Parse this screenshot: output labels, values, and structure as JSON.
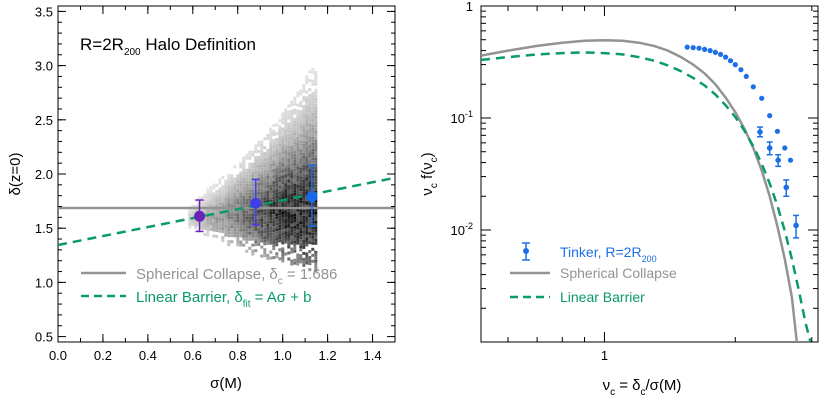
{
  "chart_data": [
    {
      "type": "scatter",
      "annotation": {
        "main": "R=2R",
        "sub": "200",
        "tail": " Halo Definition"
      },
      "xlabel": "σ(M)",
      "ylabel": "δ(z=0)",
      "xlim": [
        0.0,
        1.5
      ],
      "ylim": [
        0.45,
        3.55
      ],
      "xticks": [
        0.0,
        0.2,
        0.4,
        0.6,
        0.8,
        1.0,
        1.2,
        1.4
      ],
      "xtick_labels": [
        "0.0",
        "0.2",
        "0.4",
        "0.6",
        "0.8",
        "1.0",
        "1.2",
        "1.4"
      ],
      "yticks": [
        0.5,
        1.0,
        1.5,
        2.0,
        2.5,
        3.0,
        3.5
      ],
      "ytick_labels": [
        "0.5",
        "1.0",
        "1.5",
        "2.0",
        "2.5",
        "3.0",
        "3.5"
      ],
      "density_hist": {
        "description": "2D histogram of halo barrier heights",
        "x_range": [
          0.58,
          1.15
        ],
        "upper_envelope": [
          [
            0.58,
            1.72
          ],
          [
            0.65,
            1.85
          ],
          [
            0.75,
            2.02
          ],
          [
            0.85,
            2.22
          ],
          [
            0.95,
            2.45
          ],
          [
            1.05,
            2.72
          ],
          [
            1.12,
            2.98
          ]
        ],
        "lower_envelope": [
          [
            0.58,
            1.52
          ],
          [
            0.65,
            1.45
          ],
          [
            0.75,
            1.36
          ],
          [
            0.85,
            1.28
          ],
          [
            0.95,
            1.22
          ],
          [
            1.05,
            1.17
          ],
          [
            1.12,
            1.12
          ]
        ]
      },
      "series": [
        {
          "name": "Spherical Collapse",
          "style": "solid",
          "color": "#939393",
          "x": [
            0.0,
            1.5
          ],
          "y": [
            1.686,
            1.686
          ]
        },
        {
          "name": "Linear Barrier",
          "style": "dashed",
          "color": "#0a9a6b",
          "x": [
            0.0,
            1.5
          ],
          "y": [
            1.345,
            1.965
          ]
        }
      ],
      "points": [
        {
          "x": 0.63,
          "y": 1.61,
          "yerr": [
            1.47,
            1.76
          ],
          "color": "#6a22b8"
        },
        {
          "x": 0.88,
          "y": 1.73,
          "yerr": [
            1.53,
            1.95
          ],
          "color": "#3f3fe8"
        },
        {
          "x": 1.13,
          "y": 1.79,
          "yerr": [
            1.52,
            2.08
          ],
          "color": "#1868e8"
        }
      ],
      "legend": {
        "position": "bottom-left",
        "entries": [
          {
            "prefix": "Spherical Collapse, δ",
            "sub": "c",
            "suffix": " = 1.686",
            "color": "#939393",
            "style": "solid"
          },
          {
            "prefix": "Linear Barrier, δ",
            "sub": "fit",
            "suffix": " = Aσ + b",
            "color": "#0a9a6b",
            "style": "dashed"
          }
        ]
      }
    },
    {
      "type": "line",
      "xlabel": {
        "a": "ν",
        "a_sub": "c",
        "b": " = δ",
        "b_sub": "c",
        "c": "/σ(M)"
      },
      "ylabel": {
        "a": "ν",
        "a_sub": "c",
        "b": " f(ν",
        "b_sub": "c",
        "c": ")"
      },
      "xscale": "log",
      "yscale": "log",
      "xlim": [
        0.52,
        3.1
      ],
      "ylim": [
        0.001,
        1.0
      ],
      "xticks": [
        1
      ],
      "xtick_labels": [
        "1"
      ],
      "yticks": [
        1.0,
        0.1,
        0.01
      ],
      "ytick_labels": [
        {
          "base": "1",
          "exp": ""
        },
        {
          "base": "10",
          "exp": "-1"
        },
        {
          "base": "10",
          "exp": "-2"
        }
      ],
      "series": [
        {
          "name": "Spherical Collapse",
          "style": "solid",
          "color": "#939393",
          "x": [
            0.52,
            0.6,
            0.7,
            0.8,
            0.9,
            1.0,
            1.1,
            1.2,
            1.3,
            1.4,
            1.5,
            1.6,
            1.7,
            1.8,
            1.9,
            2.0,
            2.1,
            2.2,
            2.3,
            2.4,
            2.5,
            2.6,
            2.7,
            2.77
          ],
          "y": [
            0.36,
            0.4,
            0.44,
            0.47,
            0.49,
            0.495,
            0.49,
            0.47,
            0.44,
            0.4,
            0.35,
            0.3,
            0.25,
            0.2,
            0.152,
            0.113,
            0.08,
            0.054,
            0.034,
            0.02,
            0.0108,
            0.0055,
            0.0025,
            0.001
          ]
        },
        {
          "name": "Linear Barrier",
          "style": "dashed",
          "color": "#0a9a6b",
          "x": [
            0.52,
            0.6,
            0.7,
            0.8,
            0.9,
            1.0,
            1.1,
            1.2,
            1.3,
            1.4,
            1.5,
            1.6,
            1.7,
            1.8,
            1.9,
            2.0,
            2.1,
            2.2,
            2.3,
            2.4,
            2.5,
            2.6,
            2.7,
            2.8,
            2.9,
            2.98
          ],
          "y": [
            0.33,
            0.35,
            0.37,
            0.38,
            0.385,
            0.38,
            0.37,
            0.35,
            0.325,
            0.295,
            0.262,
            0.228,
            0.195,
            0.162,
            0.13,
            0.102,
            0.077,
            0.056,
            0.039,
            0.026,
            0.0165,
            0.0098,
            0.0055,
            0.0029,
            0.0015,
            0.001
          ]
        },
        {
          "name": "Tinker, R=2R200",
          "style": "points",
          "color": "#1c6fe6",
          "x": [
            1.55,
            1.6,
            1.65,
            1.7,
            1.75,
            1.8,
            1.85,
            1.9,
            1.95,
            2.0,
            2.06,
            2.12,
            2.2,
            2.3,
            2.4,
            2.5,
            2.6,
            2.68
          ],
          "y": [
            0.43,
            0.425,
            0.42,
            0.41,
            0.4,
            0.385,
            0.37,
            0.35,
            0.325,
            0.3,
            0.27,
            0.235,
            0.19,
            0.15,
            0.105,
            0.076,
            0.054,
            0.042
          ],
          "errpoints": [
            {
              "x": 2.28,
              "y": 0.075,
              "lo": 0.068,
              "hi": 0.083
            },
            {
              "x": 2.4,
              "y": 0.054,
              "lo": 0.047,
              "hi": 0.061
            },
            {
              "x": 2.51,
              "y": 0.042,
              "lo": 0.037,
              "hi": 0.047
            },
            {
              "x": 2.62,
              "y": 0.024,
              "lo": 0.02,
              "hi": 0.028
            },
            {
              "x": 2.76,
              "y": 0.011,
              "lo": 0.0085,
              "hi": 0.0135
            }
          ]
        }
      ],
      "legend": {
        "position": "bottom-left",
        "entries": [
          {
            "prefix": "Tinker, R=2R",
            "sub": "200",
            "color": "#1c6fe6",
            "style": "errpoint"
          },
          {
            "prefix": "Spherical Collapse",
            "sub": "",
            "color": "#939393",
            "style": "solid"
          },
          {
            "prefix": "Linear Barrier",
            "sub": "",
            "color": "#0a9a6b",
            "style": "dashed"
          }
        ]
      }
    }
  ]
}
